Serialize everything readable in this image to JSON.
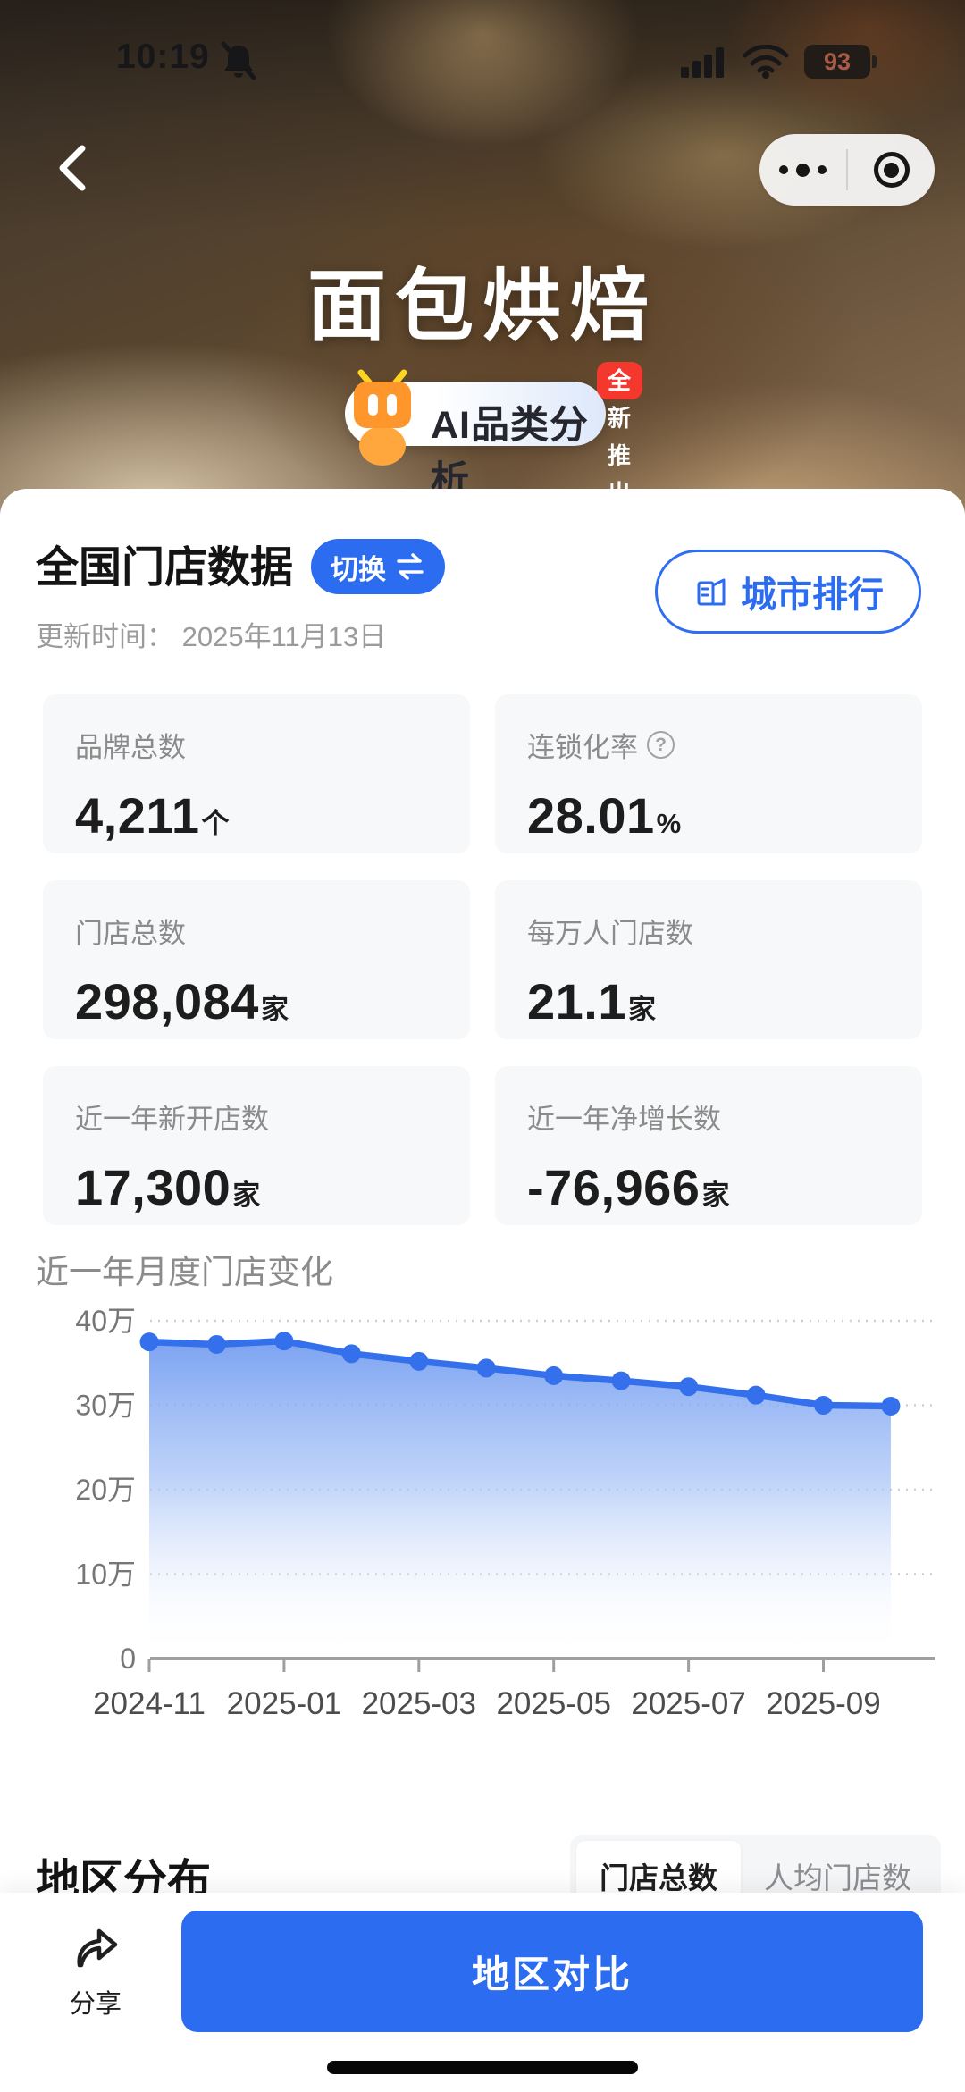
{
  "status_bar": {
    "time": "10:19",
    "battery": "93"
  },
  "nav": {
    "title": "面包烘焙"
  },
  "ai_badge": {
    "label": "AI品类分析",
    "tag": "全新推出"
  },
  "section": {
    "title": "全国门店数据",
    "switch_label": "切换",
    "city_rank_label": "城市排行",
    "update_time": "更新时间： 2025年11月13日"
  },
  "stats": {
    "help_glyph": "?",
    "cards": [
      {
        "label": "品牌总数",
        "value": "4,211",
        "unit": "个",
        "help": false
      },
      {
        "label": "连锁化率",
        "value": "28.01",
        "unit": "%",
        "help": true
      },
      {
        "label": "门店总数",
        "value": "298,084",
        "unit": "家",
        "help": false
      },
      {
        "label": "每万人门店数",
        "value": "21.1",
        "unit": "家",
        "help": false
      },
      {
        "label": "近一年新开店数",
        "value": "17,300",
        "unit": "家",
        "help": false
      },
      {
        "label": "近一年净增长数",
        "value": "-76,966",
        "unit": "家",
        "help": false
      }
    ]
  },
  "chart_data": {
    "type": "area",
    "title": "近一年月度门店变化",
    "x": [
      "2024-11",
      "2024-12",
      "2025-01",
      "2025-02",
      "2025-03",
      "2025-04",
      "2025-05",
      "2025-06",
      "2025-07",
      "2025-08",
      "2025-09",
      "2025-10"
    ],
    "values_wan": [
      37.5,
      37.2,
      37.6,
      36.1,
      35.2,
      34.4,
      33.5,
      32.9,
      32.2,
      31.2,
      30.0,
      29.9
    ],
    "unit": "万",
    "y_ticks": [
      {
        "label": "40万",
        "value": 40
      },
      {
        "label": "30万",
        "value": 30
      },
      {
        "label": "20万",
        "value": 20
      },
      {
        "label": "10万",
        "value": 10
      },
      {
        "label": "0",
        "value": 0
      }
    ],
    "x_tick_labels": [
      "2024-11",
      "2025-01",
      "2025-03",
      "2025-05",
      "2025-07",
      "2025-09"
    ],
    "ylim": [
      0,
      40
    ],
    "grid": "dotted-horizontal",
    "legend": false,
    "line_color": "#3470eb"
  },
  "region": {
    "title": "地区分布",
    "tabs": [
      {
        "label": "门店总数",
        "selected": true
      },
      {
        "label": "人均门店数",
        "selected": false
      }
    ]
  },
  "bottom_bar": {
    "share_label": "分享",
    "compare_label": "地区对比"
  },
  "colors": {
    "accent": "#2b6cf0",
    "chart_line": "#3470eb",
    "tag_red": "#f4382e",
    "card_bg": "#f7f8f9"
  }
}
